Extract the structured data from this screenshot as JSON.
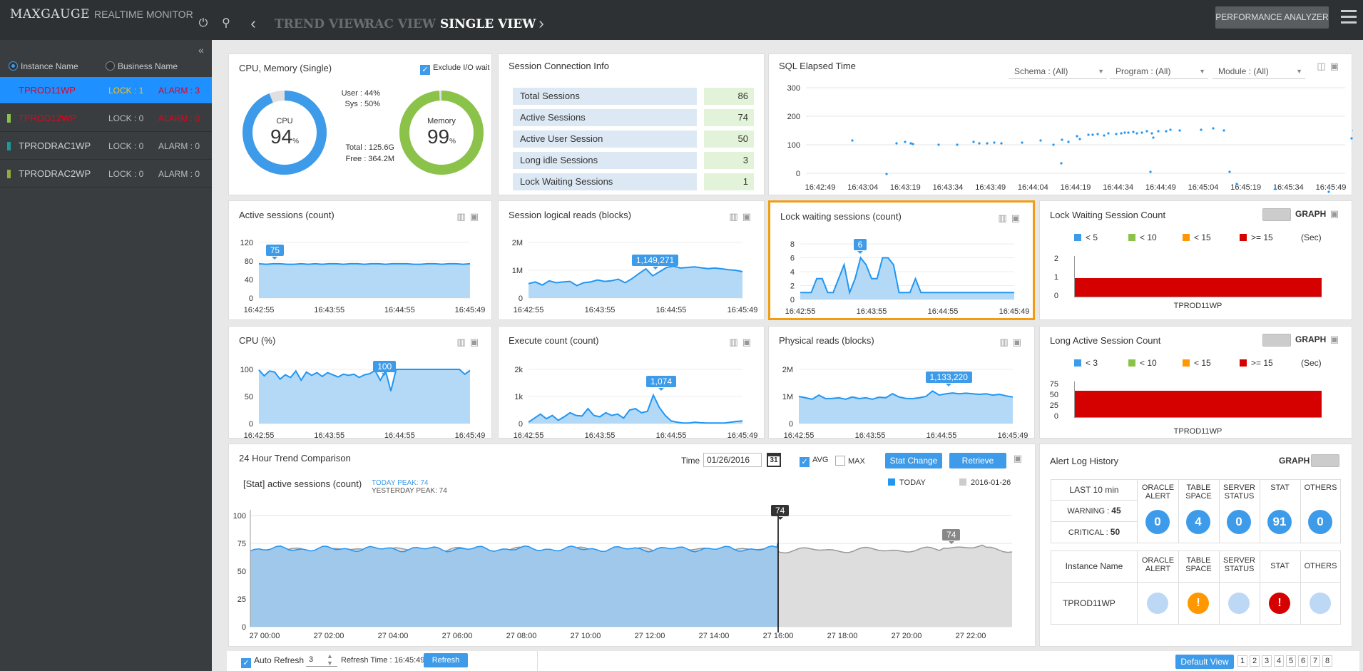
{
  "header": {
    "logo": "MAXGAUGE",
    "logo_sub": "REALTIME MONITOR",
    "nav": [
      "TREND VIEW",
      "RAC VIEW",
      "SINGLE VIEW"
    ],
    "perf_btn": "PERFORMANCE ANALYZER"
  },
  "sidebar": {
    "radio1": "Instance Name",
    "radio2": "Business Name",
    "instances": [
      {
        "name": "TPROD11WP",
        "lock": "LOCK : 1",
        "alarm": "ALARM : 3",
        "bar": "#3d9be9"
      },
      {
        "name": "TPROD12WP",
        "lock": "LOCK : 0",
        "alarm": "ALARM : 0",
        "bar": "#8bc34a"
      },
      {
        "name": "TPRODRAC1WP",
        "lock": "LOCK : 0",
        "alarm": "ALARM : 0",
        "bar": "#1a9b9b"
      },
      {
        "name": "TPRODRAC2WP",
        "lock": "LOCK : 0",
        "alarm": "ALARM : 0",
        "bar": "#9aa83a"
      }
    ]
  },
  "cpu_panel": {
    "title": "CPU, Memory (Single)",
    "exclude": "Exclude I/O wait",
    "cpu_label": "CPU",
    "cpu_val": "94",
    "mem_label": "Memory",
    "mem_val": "99",
    "pct": "%",
    "user": "User :  44%",
    "sys": "Sys :  50%",
    "total": "Total : 125.6G",
    "free": "Free : 364.2M",
    "cpu_ratio": 0.94,
    "mem_ratio": 0.99
  },
  "session_panel": {
    "title": "Session Connection Info",
    "rows": [
      {
        "label": "Total Sessions",
        "value": "86"
      },
      {
        "label": "Active Sessions",
        "value": "74"
      },
      {
        "label": "Active User Session",
        "value": "50"
      },
      {
        "label": "Long idle Sessions",
        "value": "3"
      },
      {
        "label": "Lock Waiting Sessions",
        "value": "1"
      }
    ]
  },
  "sql_panel": {
    "title": "SQL Elapsed Time",
    "schema": "Schema : (All)",
    "program": "Program : (All)",
    "module": "Module : (All)",
    "yticks": [
      "300",
      "200",
      "100",
      "0"
    ],
    "xticks": [
      "16:42:49",
      "16:43:04",
      "16:43:19",
      "16:43:34",
      "16:43:49",
      "16:44:04",
      "16:44:19",
      "16:44:34",
      "16:44:49",
      "16:45:04",
      "16:45:19",
      "16:45:34",
      "16:45:49"
    ]
  },
  "charts": [
    {
      "id": "active",
      "title": "Active sessions (count)",
      "yticks": [
        "120",
        "80",
        "40",
        "0"
      ],
      "xticks": [
        "16:42:55",
        "16:43:55",
        "16:44:55",
        "16:45:49"
      ],
      "tag": "75"
    },
    {
      "id": "logical",
      "title": "Session logical reads (blocks)",
      "yticks": [
        "2M",
        "1M",
        "0"
      ],
      "xticks": [
        "16:42:55",
        "16:43:55",
        "16:44:55",
        "16:45:49"
      ],
      "tag": "1,149,271"
    },
    {
      "id": "lockwait",
      "title": "Lock waiting sessions (count)",
      "yticks": [
        "8",
        "6",
        "4",
        "2",
        "0"
      ],
      "xticks": [
        "16:42:55",
        "16:43:55",
        "16:44:55",
        "16:45:49"
      ],
      "tag": "6"
    },
    {
      "id": "cpu",
      "title": "CPU (%)",
      "yticks": [
        "100",
        "50",
        "0"
      ],
      "xticks": [
        "16:42:55",
        "16:43:55",
        "16:44:55",
        "16:45:49"
      ],
      "tag": "100"
    },
    {
      "id": "exec",
      "title": "Execute count (count)",
      "yticks": [
        "2k",
        "1k",
        "0"
      ],
      "xticks": [
        "16:42:55",
        "16:43:55",
        "16:44:55",
        "16:45:49"
      ],
      "tag": "1,074"
    },
    {
      "id": "phys",
      "title": "Physical reads (blocks)",
      "yticks": [
        "2M",
        "1M",
        "0"
      ],
      "xticks": [
        "16:42:55",
        "16:43:55",
        "16:44:55",
        "16:45:49"
      ],
      "tag": "1,133,220"
    }
  ],
  "lock_count": {
    "title": "Lock Waiting Session Count",
    "graph": "GRAPH",
    "legend": [
      "< 5",
      "< 10",
      "< 15",
      ">= 15"
    ],
    "unit": "(Sec)",
    "yticks": [
      "2",
      "1",
      "0"
    ],
    "bar_label": "TPROD11WP"
  },
  "long_active": {
    "title": "Long Active Session Count",
    "graph": "GRAPH",
    "legend": [
      "< 3",
      "< 10",
      "< 15",
      ">= 15"
    ],
    "unit": "(Sec)",
    "yticks": [
      "75",
      "50",
      "25",
      "0"
    ],
    "bar_label": "TPROD11WP"
  },
  "trend": {
    "title": "24 Hour Trend Comparison",
    "time_label": "Time",
    "date": "01/26/2016",
    "cal": "31",
    "avg": "AVG",
    "max": "MAX",
    "stat_btn": "Stat Change",
    "retrieve_btn": "Retrieve",
    "stat_title": "[Stat] active sessions (count)",
    "today_peak": "TODAY PEAK: 74",
    "yesterday_peak": "YESTERDAY PEAK: 74",
    "legend_today": "TODAY",
    "legend_prev": "2016-01-26",
    "yticks": [
      "100",
      "75",
      "50",
      "25",
      "0"
    ],
    "xticks": [
      "27 00:00",
      "27 02:00",
      "27 04:00",
      "27 06:00",
      "27 08:00",
      "27 10:00",
      "27 12:00",
      "27 14:00",
      "27 16:00",
      "27 18:00",
      "27 20:00",
      "27 22:00"
    ],
    "now_tag": "74",
    "prev_tag": "74"
  },
  "alert": {
    "title": "Alert Log History",
    "graph": "GRAPH",
    "last": "LAST 10 min",
    "warning_label": "WARNING :",
    "warning": "45",
    "critical_label": "CRITICAL :",
    "critical": "50",
    "cols": [
      [
        "ORACLE",
        "ALERT"
      ],
      [
        "TABLE",
        "SPACE"
      ],
      [
        "SERVER",
        "STATUS"
      ],
      [
        "STAT",
        ""
      ],
      [
        "OTHERS",
        ""
      ]
    ],
    "counts": [
      "0",
      "4",
      "0",
      "91",
      "0"
    ],
    "inst_header": "Instance Name",
    "inst": "TPROD11WP"
  },
  "footer": {
    "auto_refresh": "Auto Refresh",
    "interval": "3",
    "refresh_time": "Refresh Time : 16:45:49",
    "refresh_btn": "Refresh",
    "default_view": "Default View",
    "pages": [
      "1",
      "2",
      "3",
      "4",
      "5",
      "6",
      "7",
      "8"
    ]
  }
}
